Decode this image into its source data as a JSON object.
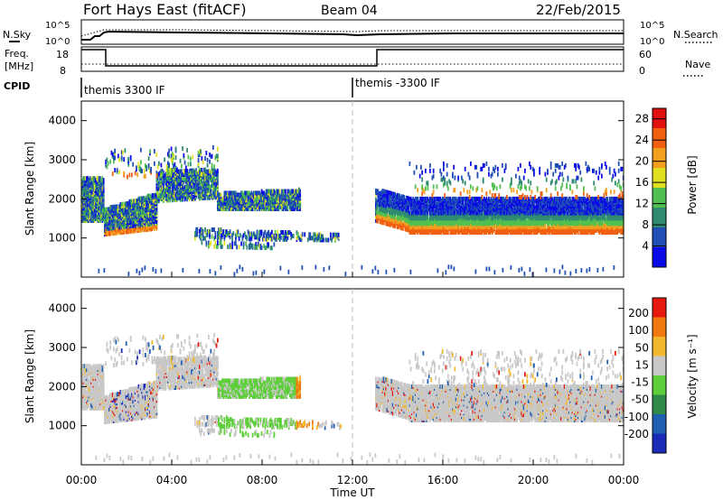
{
  "header": {
    "station": "Fort Hays East (fitACF)",
    "beam": "Beam 04",
    "date": "22/Feb/2015"
  },
  "noise_panel": {
    "left_label": "N.Sky",
    "right_label": "N.Search",
    "left_ticks": [
      "10^5",
      "10^0"
    ],
    "right_ticks": [
      "10^5",
      "10^0"
    ]
  },
  "freq_panel": {
    "left_label_line1": "Freq.",
    "left_label_line2": "[MHz]",
    "right_label": "Nave",
    "left_ticks": [
      18,
      8
    ],
    "right_ticks": [
      60,
      0
    ]
  },
  "cpid_panel": {
    "label": "CPID",
    "segments": [
      {
        "name": "themis 3300 IF",
        "start_hour": 0
      },
      {
        "name": "themis -3300 IF",
        "start_hour": 12
      }
    ]
  },
  "chart_data": [
    {
      "type": "heatmap",
      "id": "power",
      "xlabel": "Time UT",
      "ylabel": "Slant Range [km]",
      "xlim_hours": [
        0,
        24
      ],
      "x_tick_labels": [
        "00:00",
        "04:00",
        "08:00",
        "12:00",
        "16:00",
        "20:00",
        "00:00"
      ],
      "ylim": [
        0,
        4500
      ],
      "y_ticks": [
        1000,
        2000,
        3000,
        4000
      ],
      "colorbar_label": "Power [dB]",
      "colorbar_ticks": [
        4,
        8,
        12,
        16,
        20,
        24,
        28
      ],
      "colorbar_range": [
        0,
        30
      ],
      "colors": [
        "#0a0ae6",
        "#1f4fb5",
        "#2f8a70",
        "#50c050",
        "#e0e020",
        "#f2a020",
        "#f06010",
        "#e01010"
      ]
    },
    {
      "type": "heatmap",
      "id": "velocity",
      "xlabel": "Time UT",
      "ylabel": "Slant Range [km]",
      "xlim_hours": [
        0,
        24
      ],
      "x_tick_labels": [
        "00:00",
        "04:00",
        "08:00",
        "12:00",
        "16:00",
        "20:00",
        "00:00"
      ],
      "ylim": [
        0,
        4500
      ],
      "y_ticks": [
        1000,
        2000,
        3000,
        4000
      ],
      "colorbar_label": "Velocity [m s⁻¹]",
      "colorbar_ticks": [
        200,
        100,
        50,
        15,
        -15,
        -50,
        -100,
        -200
      ],
      "colors": [
        "#1a2bb8",
        "#1e5fb0",
        "#2f8a4a",
        "#5ecf3a",
        "#c8c8c8",
        "#f2b830",
        "#f07a10",
        "#e81a10"
      ]
    }
  ]
}
